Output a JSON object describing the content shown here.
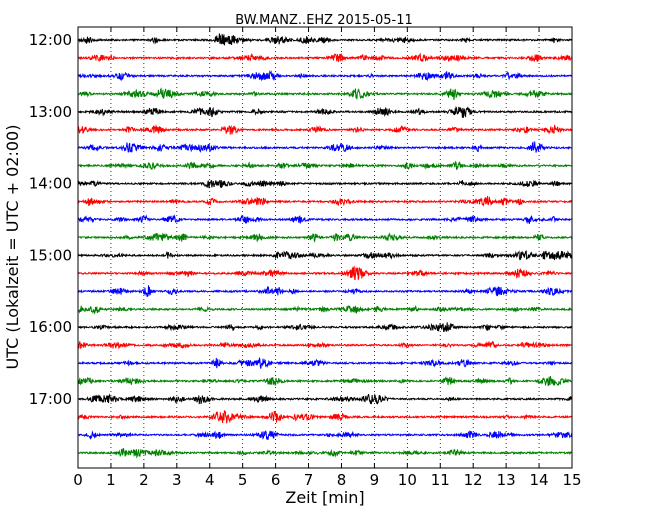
{
  "chart_data": {
    "type": "line",
    "title": "BW.MANZ..EHZ 2015-05-11",
    "xlabel": "Zeit  [min]",
    "ylabel": "UTC (Lokalzeit = UTC + 02:00)",
    "xlim": [
      0,
      15
    ],
    "x_ticks": [
      "0",
      "1",
      "2",
      "3",
      "4",
      "5",
      "6",
      "7",
      "8",
      "9",
      "10",
      "11",
      "12",
      "13",
      "14",
      "15"
    ],
    "y_tick_labels": [
      "12:00",
      "13:00",
      "14:00",
      "15:00",
      "16:00",
      "17:00"
    ],
    "row_minutes": 15,
    "grid": "vertical-dotted",
    "color_cycle": [
      "#000000",
      "#ff0000",
      "#0000ff",
      "#008000"
    ],
    "series": [
      {
        "start": "12:00"
      },
      {
        "start": "12:15"
      },
      {
        "start": "12:30"
      },
      {
        "start": "12:45"
      },
      {
        "start": "13:00"
      },
      {
        "start": "13:15"
      },
      {
        "start": "13:30"
      },
      {
        "start": "13:45"
      },
      {
        "start": "14:00"
      },
      {
        "start": "14:15"
      },
      {
        "start": "14:30"
      },
      {
        "start": "14:45"
      },
      {
        "start": "15:00"
      },
      {
        "start": "15:15"
      },
      {
        "start": "15:30"
      },
      {
        "start": "15:45"
      },
      {
        "start": "16:00"
      },
      {
        "start": "16:15"
      },
      {
        "start": "16:30"
      },
      {
        "start": "16:45"
      },
      {
        "start": "17:00"
      },
      {
        "start": "17:15"
      },
      {
        "start": "17:30"
      },
      {
        "start": "17:45"
      }
    ]
  }
}
